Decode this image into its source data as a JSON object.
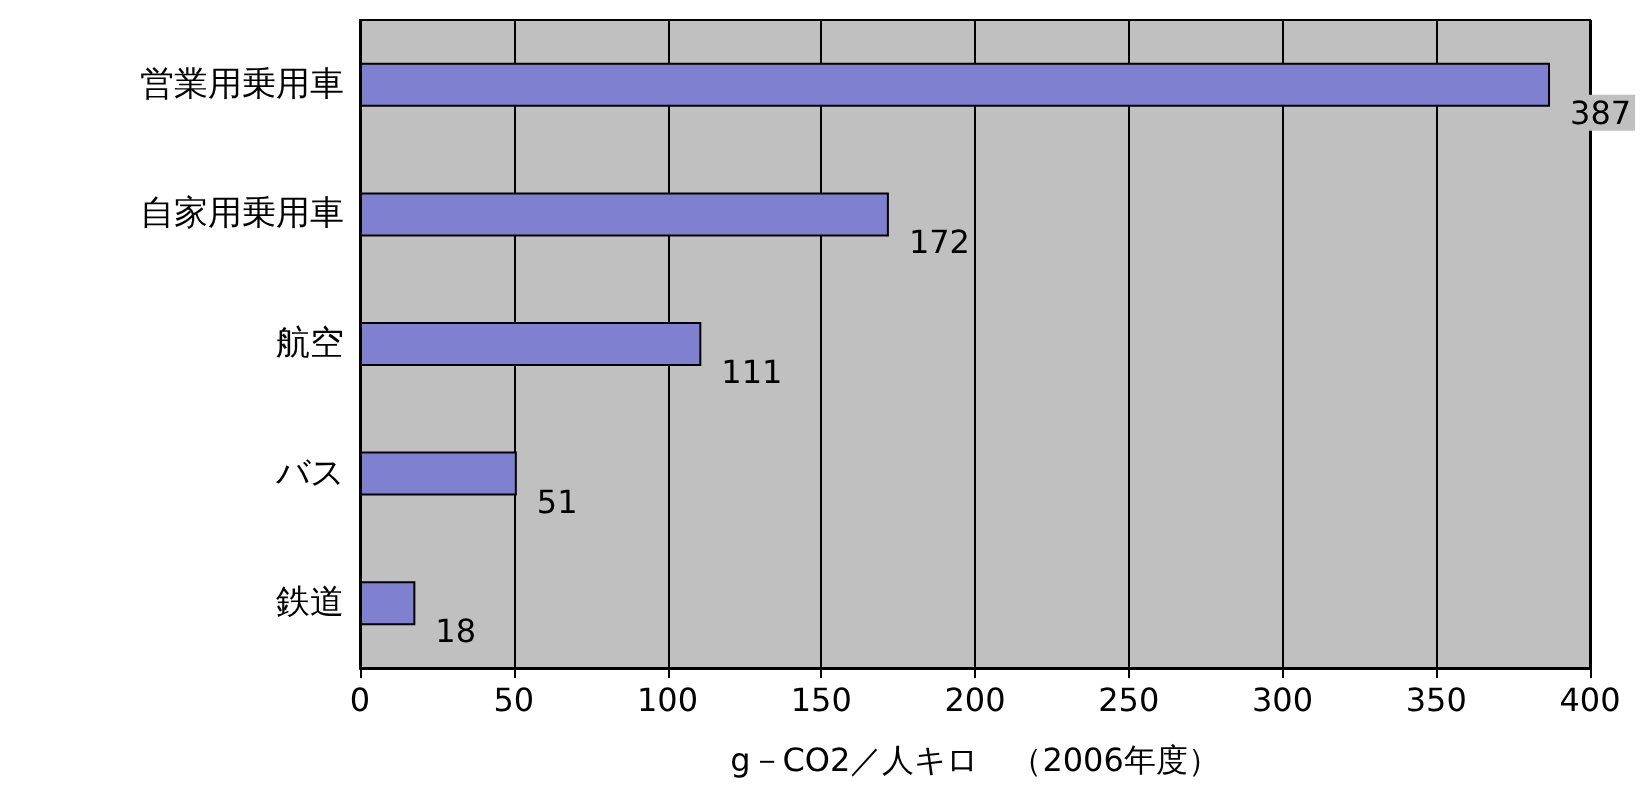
{
  "chart_data": {
    "type": "bar",
    "orientation": "horizontal",
    "xlabel": "g－CO2／人キロ　（2006年度）",
    "categories": [
      "営業用乗用車",
      "自家用乗用車",
      "航空",
      "バス",
      "鉄道"
    ],
    "values": [
      387,
      172,
      111,
      51,
      18
    ],
    "color": "#8080d0",
    "xlim": [
      0,
      400
    ],
    "xticks": [
      0,
      50,
      100,
      150,
      200,
      250,
      300,
      350,
      400
    ],
    "grid": "x",
    "data_labels": true
  }
}
